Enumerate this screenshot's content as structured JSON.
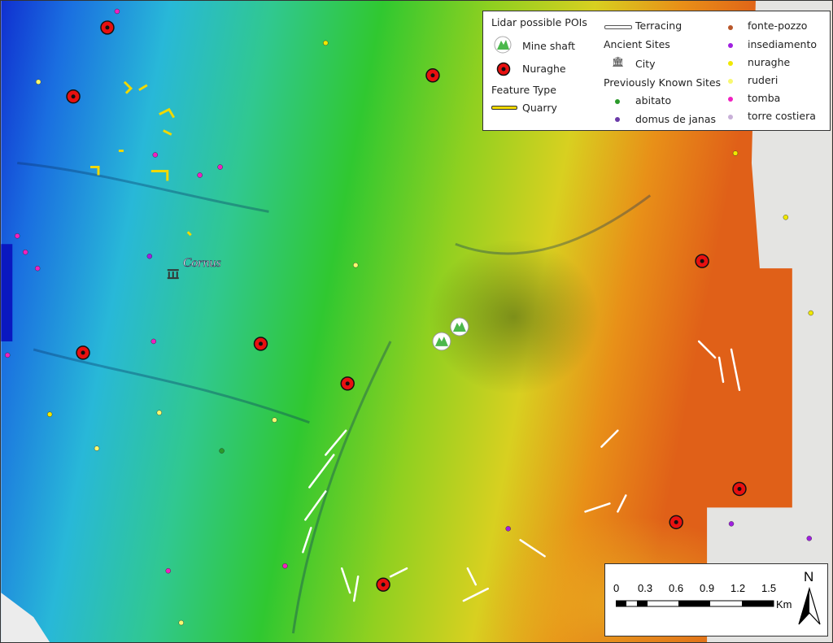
{
  "legend": {
    "lidar_title": "Lidar possible POIs",
    "mine_shaft": "Mine shaft",
    "nuraghe": "Nuraghe",
    "feature_type_title": "Feature Type",
    "quarry": "Quarry",
    "terracing": "Terracing",
    "ancient_sites_title": "Ancient Sites",
    "city": "City",
    "known_sites_title": "Previously Known Sites",
    "known_sites": [
      {
        "label": "abitato",
        "color": "#2a9a2a"
      },
      {
        "label": "domus de janas",
        "color": "#6a3aa8"
      },
      {
        "label": "fonte-pozzo",
        "color": "#b8562a"
      },
      {
        "label": "insediamento",
        "color": "#a020e0"
      },
      {
        "label": "nuraghe",
        "color": "#f0e800"
      },
      {
        "label": "ruderi",
        "color": "#f8f870"
      },
      {
        "label": "tomba",
        "color": "#f020c0"
      },
      {
        "label": "torre costiera",
        "color": "#c8b0d8"
      }
    ]
  },
  "map": {
    "city_label": "Cornus"
  },
  "scale_bar": {
    "ticks": [
      "0",
      "0.3",
      "0.6",
      "0.9",
      "1.2",
      "1.5"
    ],
    "unit": "Km"
  },
  "north_arrow": {
    "label": "N"
  },
  "colors": {
    "nuraghe_marker": "#e81010",
    "quarry": "#f0d800",
    "terracing": "#ffffff",
    "mine_shaft": "#4cb84c"
  }
}
